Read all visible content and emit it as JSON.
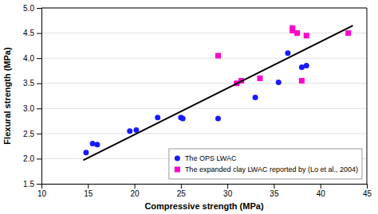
{
  "chart_data": {
    "type": "scatter",
    "xlabel": "Compressive strength (MPa)",
    "ylabel": "Flexural strength (MPa)",
    "xlim": [
      10,
      45
    ],
    "ylim": [
      1.5,
      5.0
    ],
    "xticks": [
      10,
      15,
      20,
      25,
      30,
      35,
      40,
      45
    ],
    "yticks": [
      1.5,
      {
        "value": 2.0,
        "label": "2.0"
      },
      2.5,
      {
        "value": 3.0,
        "label": "3.0"
      },
      3.5,
      {
        "value": 4.0,
        "label": "4.0"
      },
      4.5,
      {
        "value": 5.0,
        "label": "5.0"
      }
    ],
    "grid": "y",
    "legend": "lower right",
    "series": [
      {
        "name": "The OPS LWAC",
        "color": "#1a1aff",
        "marker": "circle",
        "x": [
          14.8,
          15.5,
          16.0,
          19.5,
          20.2,
          22.5,
          25.0,
          25.2,
          29.0,
          33.0,
          35.5,
          36.5,
          38.0,
          38.5
        ],
        "values": [
          2.12,
          2.3,
          2.28,
          2.55,
          2.57,
          2.82,
          2.82,
          2.8,
          2.8,
          3.22,
          3.52,
          4.1,
          3.82,
          3.85
        ]
      },
      {
        "name": "The expanded clay LWAC reported by (Lo et al., 2004)",
        "color": "#FF00CC",
        "marker": "square",
        "x": [
          29.0,
          31.0,
          31.5,
          33.5,
          37.0,
          37.0,
          37.5,
          38.0,
          38.5,
          43.0
        ],
        "values": [
          4.05,
          3.5,
          3.55,
          3.6,
          4.6,
          4.55,
          4.5,
          3.55,
          4.45,
          4.5
        ]
      },
      {
        "type": "line",
        "color": "#000000",
        "line_style": "solid",
        "x": [
          14.5,
          43.5
        ],
        "values": [
          1.97,
          4.65
        ]
      }
    ]
  }
}
